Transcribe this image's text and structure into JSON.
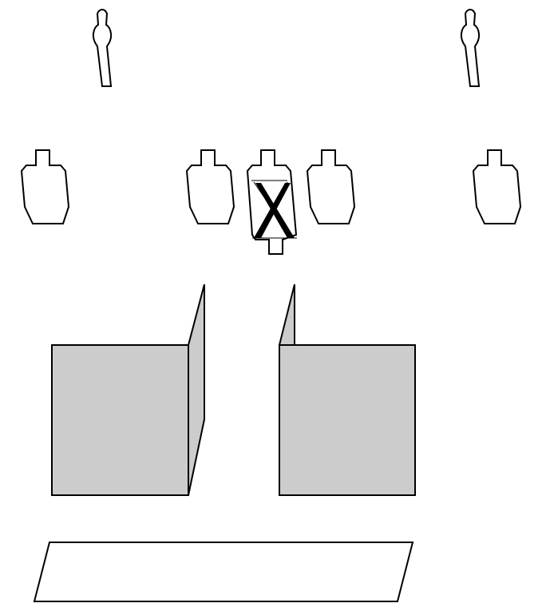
{
  "colors": {
    "outline": "#000000",
    "target_fill": "#ffffff",
    "barrier_fill": "#cccccc",
    "background": "#ffffff"
  },
  "elements": {
    "steel_targets": [
      "popper-target",
      "popper-target"
    ],
    "paper_targets": [
      "paper-target",
      "paper-target",
      "paper-target",
      "paper-target",
      "paper-target"
    ],
    "inverted_target": "no-shoot-paper-target",
    "barriers": [
      "wall-barrier-left",
      "wall-barrier-right"
    ],
    "shooting_area": "fault-line-box"
  }
}
